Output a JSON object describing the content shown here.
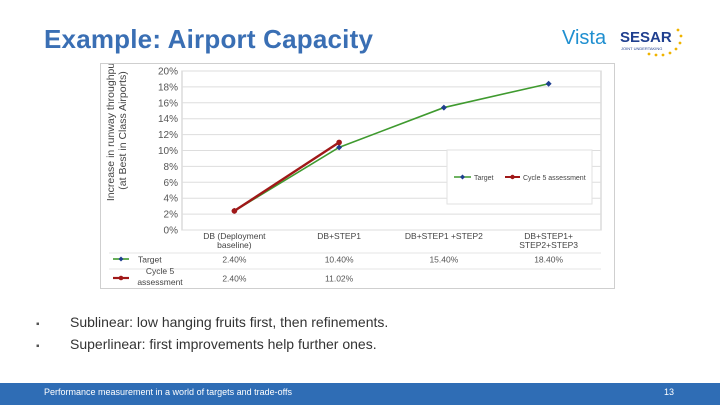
{
  "slide": {
    "title": "Example: Airport Capacity",
    "logo_text_left": "Vista",
    "logo_text_right": "SESAR",
    "logo_subtext": "JOINT UNDERTAKING",
    "bullets": [
      "Sublinear: low hanging fruits first, then refinements.",
      "Superlinear: first improvements help further ones."
    ],
    "bullet_marker": "▪",
    "footer_text": "Performance measurement in a world of targets and trade-offs",
    "page_number": "13"
  },
  "colors": {
    "title": "#3a6fb4",
    "footer_bar": "#2f6db5",
    "target_line": "#3f9a2f",
    "target_marker": "#1f3f8f",
    "cycle_line": "#a01818",
    "cycle_marker": "#a01818",
    "logo_blue": "#1f8fd0",
    "logo_star": "#f0b400"
  },
  "chart_data": {
    "type": "line",
    "ylabel": "Increase in runway throughput (at Best in Class Airports)",
    "ylim": [
      0,
      20
    ],
    "yticks": [
      "0%",
      "2%",
      "4%",
      "6%",
      "8%",
      "10%",
      "12%",
      "14%",
      "16%",
      "18%",
      "20%"
    ],
    "categories": [
      "DB (Deployment baseline)",
      "DB+STEP1",
      "DB+STEP1 +STEP2",
      "DB+STEP1+ STEP2+STEP3"
    ],
    "series": [
      {
        "name": "Target",
        "values": [
          2.4,
          10.4,
          15.4,
          18.4
        ],
        "labels": [
          "2.40%",
          "10.40%",
          "15.40%",
          "18.40%"
        ]
      },
      {
        "name": "Cycle 5 assessment",
        "values": [
          2.4,
          11.02,
          null,
          null
        ],
        "labels": [
          "2.40%",
          "11.02%",
          "",
          ""
        ]
      }
    ],
    "legend": "right",
    "grid": true
  }
}
